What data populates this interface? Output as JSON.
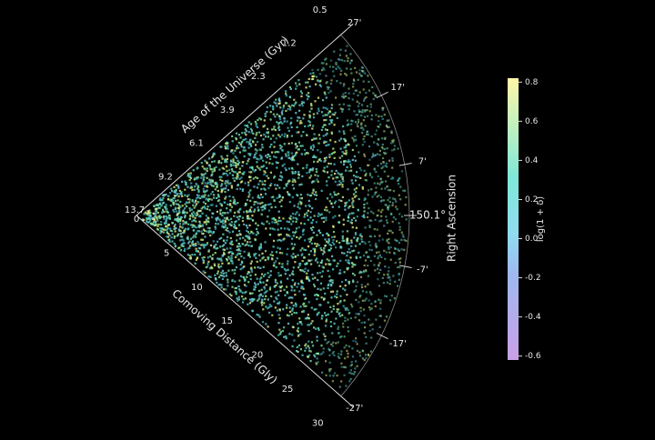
{
  "wedge": {
    "distance_label": "Comoving Distance (Gly)",
    "distance_ticks": [
      0,
      5,
      10,
      15,
      20,
      25,
      30
    ],
    "age_label": "Age of the Universe (Gyr)",
    "age_ticks": [
      13.7,
      9.2,
      6.1,
      3.9,
      2.3,
      1.2,
      0.5
    ],
    "angle_label": "Right Ascension",
    "angle_ticks": [
      {
        "value": 27,
        "label": "27'"
      },
      {
        "value": 17,
        "label": "17'"
      },
      {
        "value": 7,
        "label": "7'"
      },
      {
        "value": 0,
        "label": "150.1°"
      },
      {
        "value": -7,
        "label": "-7'"
      },
      {
        "value": -17,
        "label": "-17'"
      },
      {
        "value": -27,
        "label": "-27'"
      }
    ]
  },
  "colorbar": {
    "label": "log(1 + δ)",
    "lim": [
      -0.62,
      0.82
    ],
    "ticks": [
      0.8,
      0.6,
      0.4,
      0.2,
      {
        "value": 0,
        "label": "0.0"
      },
      -0.2,
      -0.4,
      -0.6
    ]
  }
}
